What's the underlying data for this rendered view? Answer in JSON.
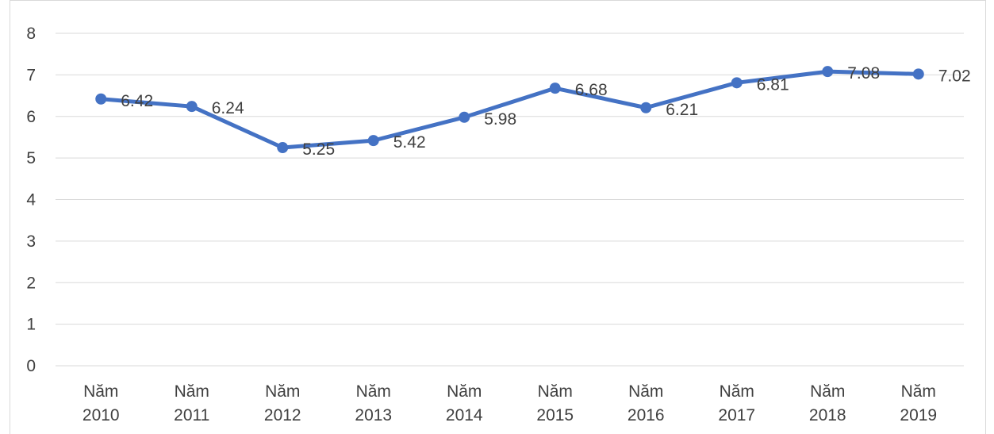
{
  "chart_data": {
    "type": "line",
    "title": "",
    "xlabel": "",
    "ylabel": "",
    "ylim": [
      0,
      8
    ],
    "y_ticks": [
      "0",
      "1",
      "2",
      "3",
      "4",
      "5",
      "6",
      "7",
      "8"
    ],
    "grid": true,
    "legend": "none",
    "categories": [
      [
        "Năm",
        "2010"
      ],
      [
        "Năm",
        "2011"
      ],
      [
        "Năm",
        "2012"
      ],
      [
        "Năm",
        "2013"
      ],
      [
        "Năm",
        "2014"
      ],
      [
        "Năm",
        "2015"
      ],
      [
        "Năm",
        "2016"
      ],
      [
        "Năm",
        "2017"
      ],
      [
        "Năm",
        "2018"
      ],
      [
        "Năm",
        "2019"
      ]
    ],
    "series": [
      {
        "values": [
          6.42,
          6.24,
          5.25,
          5.42,
          5.98,
          6.68,
          6.21,
          6.81,
          7.08,
          7.02
        ],
        "labels": [
          "6.42",
          "6.24",
          "5.25",
          "5.42",
          "5.98",
          "6.68",
          "6.21",
          "6.81",
          "7.08",
          "7.02"
        ],
        "color": "#4472c4"
      }
    ]
  }
}
